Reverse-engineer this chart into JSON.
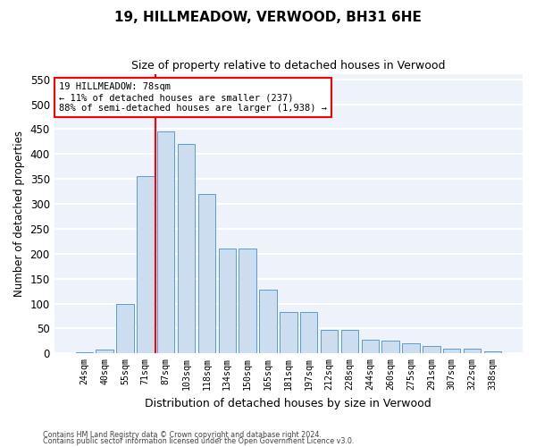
{
  "title": "19, HILLMEADOW, VERWOOD, BH31 6HE",
  "subtitle": "Size of property relative to detached houses in Verwood",
  "xlabel": "Distribution of detached houses by size in Verwood",
  "ylabel": "Number of detached properties",
  "categories": [
    "24sqm",
    "40sqm",
    "55sqm",
    "71sqm",
    "87sqm",
    "103sqm",
    "118sqm",
    "134sqm",
    "150sqm",
    "165sqm",
    "181sqm",
    "197sqm",
    "212sqm",
    "228sqm",
    "244sqm",
    "260sqm",
    "275sqm",
    "291sqm",
    "307sqm",
    "322sqm",
    "338sqm"
  ],
  "bar_values": [
    3,
    8,
    100,
    355,
    445,
    420,
    320,
    210,
    210,
    128,
    83,
    83,
    48,
    48,
    27,
    25,
    20,
    15,
    9,
    9,
    4
  ],
  "bar_color": "#ccddf0",
  "bar_edge_color": "#5b9bd5",
  "annotation_line1": "19 HILLMEADOW: 78sqm",
  "annotation_line2": "← 11% of detached houses are smaller (237)",
  "annotation_line3": "88% of semi-detached houses are larger (1,938) →",
  "annotation_box_color": "white",
  "annotation_box_edge_color": "red",
  "vline_color": "red",
  "ylim": [
    0,
    560
  ],
  "yticks": [
    0,
    50,
    100,
    150,
    200,
    250,
    300,
    350,
    400,
    450,
    500,
    550
  ],
  "footer1": "Contains HM Land Registry data © Crown copyright and database right 2024.",
  "footer2": "Contains public sector information licensed under the Open Government Licence v3.0.",
  "background_color": "#eef2fb",
  "grid_color": "white"
}
